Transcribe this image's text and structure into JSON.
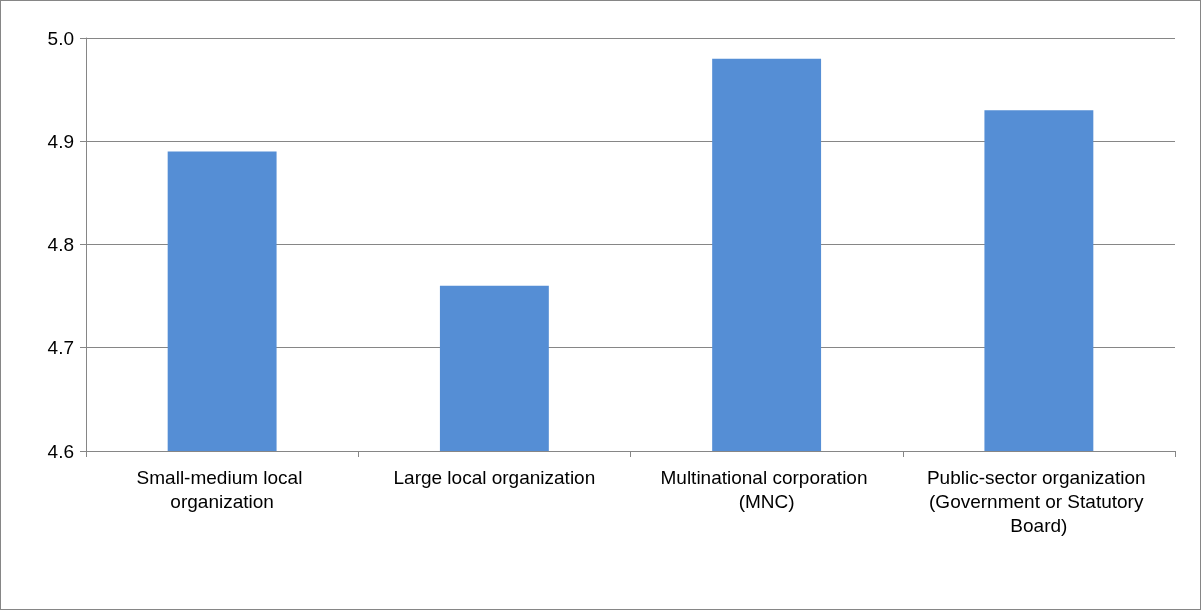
{
  "chart_data": {
    "type": "bar",
    "categories": [
      "Small-medium local organization",
      "Large local organization",
      "Multinational corporation (MNC)",
      "Public-sector organization (Government or Statutory Board)"
    ],
    "values": [
      4.89,
      4.76,
      4.98,
      4.93
    ],
    "color": "#558ed5",
    "ylim": [
      4.6,
      5.0
    ],
    "yticks": [
      4.6,
      4.7,
      4.8,
      4.9,
      {
        "value": 5.0,
        "label": "5.0"
      }
    ],
    "grid": "y"
  }
}
